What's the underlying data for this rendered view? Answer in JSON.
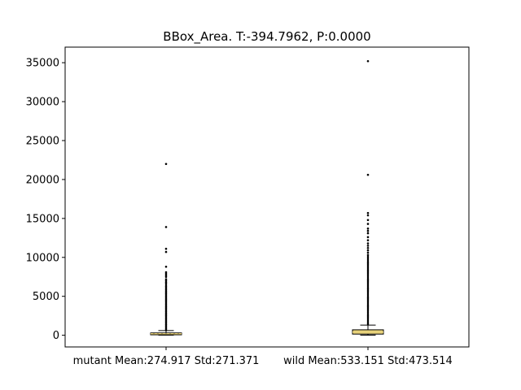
{
  "chart_data": {
    "type": "box",
    "title": "BBox_Area. T:-394.7962, P:0.0000",
    "xlabel": "",
    "ylabel": "",
    "ylim": [
      -1500,
      37000
    ],
    "yticks": [
      0,
      5000,
      10000,
      15000,
      20000,
      25000,
      30000,
      35000
    ],
    "ytick_labels": [
      "0",
      "5000",
      "10000",
      "15000",
      "20000",
      "25000",
      "30000",
      "35000"
    ],
    "categories": [
      "mutant Mean:274.917 Std:271.371",
      "wild Mean:533.151 Std:473.514"
    ],
    "series": [
      {
        "whisker_low": 10,
        "q1": 60,
        "median": 190,
        "q3": 300,
        "whisker_high": 600,
        "outliers_dense_range": [
          620,
          6400
        ],
        "outliers": [
          6600,
          6800,
          7000,
          7200,
          7500,
          7700,
          7900,
          8100,
          8800,
          10700,
          11100,
          13900,
          22000
        ]
      },
      {
        "whisker_low": 10,
        "q1": 150,
        "median": 400,
        "q3": 700,
        "whisker_high": 1300,
        "outliers_dense_range": [
          1350,
          10100
        ],
        "outliers": [
          10300,
          10600,
          10900,
          11200,
          11500,
          11800,
          12200,
          12600,
          13100,
          13400,
          13700,
          14300,
          14800,
          15400,
          15700,
          20600,
          35200
        ]
      }
    ],
    "grid": false,
    "box_color": "#e8d27a",
    "median_color": "#e8d27a",
    "outlier_color": "#000000"
  }
}
